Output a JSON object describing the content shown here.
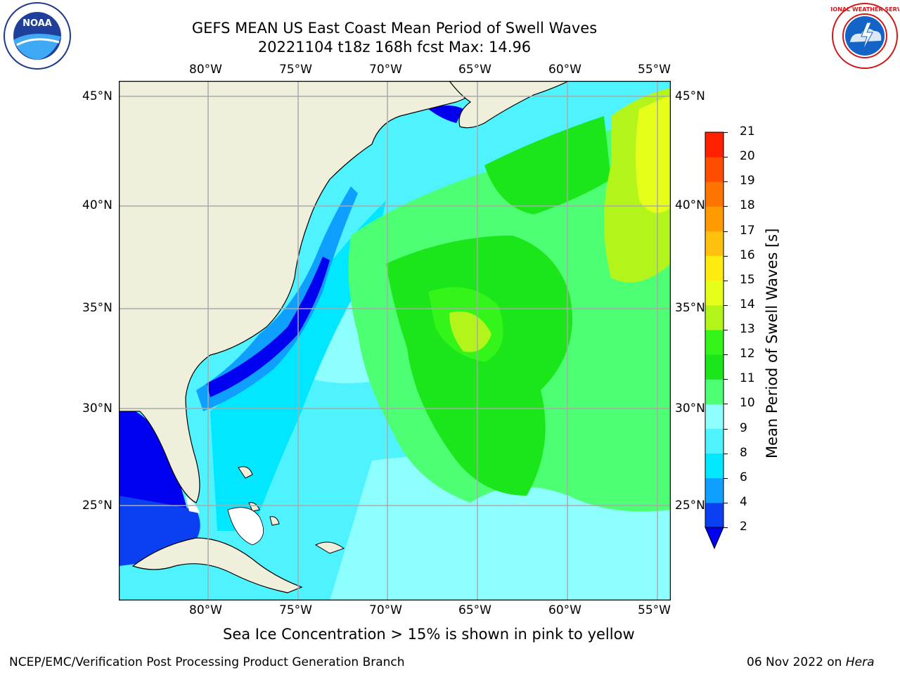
{
  "title": {
    "line1": "GEFS MEAN US East Coast Mean Period of Swell Waves",
    "line2": "20221104 t18z 168h fcst   Max: 14.96"
  },
  "logos": {
    "left": {
      "name": "noaa-logo",
      "text": "NOAA"
    },
    "right": {
      "name": "nws-logo",
      "text": "NATIONAL WEATHER SERVICE"
    }
  },
  "map": {
    "lon_labels": [
      "80°W",
      "75°W",
      "70°W",
      "65°W",
      "60°W",
      "55°W"
    ],
    "lat_labels": [
      "45°N",
      "40°N",
      "35°N",
      "30°N",
      "25°N"
    ],
    "extent": {
      "lon_min": -85,
      "lon_max": -54.5,
      "lat_min": 20.5,
      "lat_max": 46
    }
  },
  "colorbar": {
    "label": "Mean Period of Swell Waves [s]",
    "ticks": [
      "2",
      "4",
      "6",
      "8",
      "9",
      "10",
      "11",
      "12",
      "13",
      "14",
      "15",
      "16",
      "17",
      "18",
      "19",
      "20",
      "21"
    ],
    "colors": [
      "#0b3ff2",
      "#0fa0ff",
      "#00e7ff",
      "#4ef3ff",
      "#8dffff",
      "#4dff73",
      "#1ae61a",
      "#33f51a",
      "#b3f51a",
      "#e6ff1a",
      "#ffeb0f",
      "#ffc10d",
      "#ff9a00",
      "#ff7300",
      "#ff4d00",
      "#ff2000"
    ],
    "under_color": "#0000f0"
  },
  "note": "Sea Ice Concentration > 15% is shown in pink to yellow",
  "footer": {
    "left": "NCEP/EMC/Verification Post Processing Product Generation Branch",
    "right_prefix": "06 Nov 2022 on ",
    "right_italic": "Hera"
  }
}
